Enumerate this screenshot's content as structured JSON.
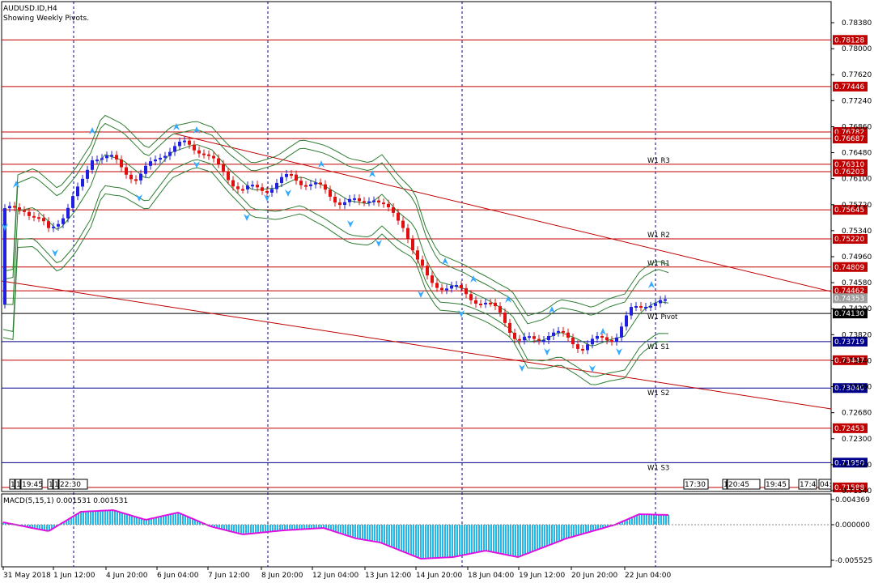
{
  "header": {
    "symbol": "AUDUSD.ID,H4",
    "note": "Showing Weekly Pivots."
  },
  "colors": {
    "bull": "#1f1fe0",
    "bear": "#e01010",
    "bands": "#2e7d32",
    "resistance": "#c00000",
    "support": "#00008b",
    "macd": "#22b8e8",
    "signal": "#e010e0",
    "vgrid": "#00008b",
    "arrow": "#33aaff"
  },
  "price_scale": {
    "ticks": [
      "0.78380",
      "0.78000",
      "0.77620",
      "0.77240",
      "0.76860",
      "0.76480",
      "0.76100",
      "0.75720",
      "0.75340",
      "0.74960",
      "0.74580",
      "0.74200",
      "0.73820",
      "0.73440",
      "0.73060",
      "0.72680",
      "0.72300",
      "0.71920",
      "0.71540"
    ]
  },
  "levels": [
    {
      "price": "0.78128",
      "kind": "r",
      "name": ""
    },
    {
      "price": "0.77446",
      "kind": "r",
      "name": ""
    },
    {
      "price": "0.76782",
      "kind": "r",
      "name": ""
    },
    {
      "price": "0.76687",
      "kind": "r",
      "name": ""
    },
    {
      "price": "0.76310",
      "kind": "r",
      "name": "W1 R3"
    },
    {
      "price": "0.76203",
      "kind": "r",
      "name": ""
    },
    {
      "price": "0.75645",
      "kind": "r",
      "name": ""
    },
    {
      "price": "0.75220",
      "kind": "r",
      "name": "W1 R2"
    },
    {
      "price": "0.74809",
      "kind": "r",
      "name": "W1 R1"
    },
    {
      "price": "0.74462",
      "kind": "r",
      "name": ""
    },
    {
      "price": "0.74130",
      "kind": "p",
      "name": "W1 Pivot"
    },
    {
      "price": "0.73719",
      "kind": "s",
      "name": "W1 S1"
    },
    {
      "price": "0.73447",
      "kind": "r",
      "name": ""
    },
    {
      "price": "0.73040",
      "kind": "s",
      "name": "W1 S2"
    },
    {
      "price": "0.72453",
      "kind": "r",
      "name": ""
    },
    {
      "price": "0.71950",
      "kind": "s",
      "name": "W1 S3"
    },
    {
      "price": "0.71588",
      "kind": "r",
      "name": ""
    }
  ],
  "current_price": "0.74353",
  "macd": {
    "title": "MACD(5,15,1) 0.001531 0.001531",
    "ticks": [
      "0.004369",
      "0.000000",
      "-0.005525"
    ]
  },
  "time_axis": [
    "31 May 2018",
    "1 Jun 12:00",
    "4 Jun 20:00",
    "6 Jun 04:00",
    "7 Jun 12:00",
    "8 Jun 20:00",
    "12 Jun 04:00",
    "13 Jun 12:00",
    "14 Jun 20:00",
    "18 Jun 04:00",
    "19 Jun 12:00",
    "20 Jun 20:00",
    "22 Jun 04:00"
  ],
  "strip": {
    "left": [
      "1",
      "1",
      "19:45",
      "1",
      "1",
      "22:30"
    ],
    "right": [
      "17:30",
      "1",
      "20:45",
      "19:45",
      "17:4",
      "04:"
    ]
  }
}
